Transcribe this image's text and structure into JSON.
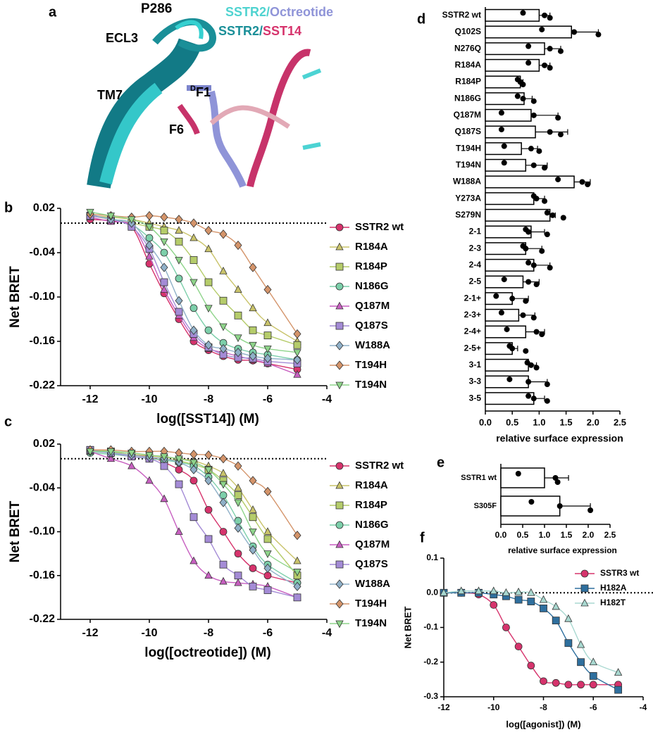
{
  "panel_a": {
    "letter": "a",
    "p286": "P286",
    "sstr2_a": "SSTR2/",
    "octreotide": "Octreotide",
    "sstr2_b": "SSTR2/",
    "sst14": "SST14",
    "ecl3": "ECL3",
    "d_prefix": "D",
    "f1": "F1",
    "tm7": "TM7",
    "f6": "F6"
  },
  "chart_data": [
    {
      "panel": "b",
      "type": "line",
      "y_label": "Net BRET",
      "x_label": "log([SST14]) (M)",
      "x": [
        -12,
        -11.3,
        -10.6,
        -10,
        -9.5,
        -9,
        -8.5,
        -8,
        -7.5,
        -7,
        -6.5,
        -6,
        -5
      ],
      "xlim": [
        -13,
        -4
      ],
      "xticks": [
        -12,
        -10,
        -8,
        -6,
        -4
      ],
      "ylim": [
        -0.22,
        0.02
      ],
      "yticks": [
        0.02,
        -0.04,
        {
          "value": -0.1,
          "label": "-0.10"
        },
        -0.16,
        -0.22
      ],
      "reference_line": 0,
      "series": [
        {
          "name": "SSTR2 wt",
          "color": "#d6336c",
          "marker": "circle",
          "values": [
            0.005,
            0.003,
            -0.005,
            -0.055,
            -0.095,
            -0.13,
            -0.16,
            -0.172,
            -0.18,
            -0.185,
            -0.186,
            -0.19,
            -0.198
          ]
        },
        {
          "name": "R184A",
          "color": "#c9c36a",
          "marker": "triangle",
          "values": [
            0.01,
            0.008,
            0.005,
            0.0,
            -0.005,
            -0.01,
            -0.02,
            -0.035,
            -0.065,
            -0.09,
            -0.115,
            -0.135,
            -0.16
          ]
        },
        {
          "name": "R184P",
          "color": "#b5cc6a",
          "marker": "square",
          "values": [
            0.01,
            0.005,
            0.0,
            -0.005,
            -0.01,
            -0.025,
            -0.05,
            -0.08,
            -0.105,
            -0.125,
            -0.145,
            -0.152,
            -0.165
          ]
        },
        {
          "name": "N186G",
          "color": "#7ccfaa",
          "marker": "circle",
          "values": [
            0.01,
            0.006,
            -0.002,
            -0.02,
            -0.04,
            -0.075,
            -0.115,
            -0.145,
            -0.162,
            -0.17,
            -0.175,
            -0.178,
            -0.185
          ]
        },
        {
          "name": "Q187M",
          "color": "#c75fc0",
          "marker": "triangle",
          "values": [
            0.008,
            0.002,
            -0.003,
            -0.045,
            -0.09,
            -0.125,
            -0.155,
            -0.17,
            -0.175,
            -0.18,
            -0.185,
            -0.19,
            -0.205
          ]
        },
        {
          "name": "Q187S",
          "color": "#a48bd6",
          "marker": "square",
          "values": [
            0.01,
            0.005,
            -0.005,
            -0.035,
            -0.08,
            -0.12,
            -0.15,
            -0.168,
            -0.178,
            -0.182,
            -0.183,
            -0.187,
            -0.19
          ]
        },
        {
          "name": "W188A",
          "color": "#8fb0c8",
          "marker": "diamond",
          "values": [
            0.012,
            0.005,
            0.0,
            -0.03,
            -0.06,
            -0.105,
            -0.145,
            -0.165,
            -0.17,
            -0.175,
            -0.18,
            -0.183,
            -0.185
          ]
        },
        {
          "name": "T194H",
          "color": "#d4946a",
          "marker": "diamond",
          "values": [
            0.012,
            0.01,
            0.008,
            0.01,
            0.008,
            0.005,
            0.0,
            -0.01,
            -0.015,
            -0.03,
            -0.06,
            -0.09,
            -0.15
          ]
        },
        {
          "name": "T194N",
          "color": "#8ed48a",
          "marker": "downtriangle",
          "values": [
            0.015,
            0.01,
            0.005,
            -0.005,
            -0.025,
            -0.05,
            -0.08,
            -0.115,
            -0.14,
            -0.155,
            -0.165,
            -0.17,
            -0.175
          ]
        }
      ]
    },
    {
      "panel": "c",
      "type": "line",
      "y_label": "Net BRET",
      "x_label": "log([octreotide]) (M)",
      "x": [
        -12,
        -11.3,
        -10.6,
        -10,
        -9.5,
        -9,
        -8.5,
        -8,
        -7.5,
        -7,
        -6.5,
        -6,
        -5
      ],
      "xlim": [
        -13,
        -4
      ],
      "xticks": [
        -12,
        -10,
        -8,
        -6,
        -4
      ],
      "ylim": [
        -0.22,
        0.02
      ],
      "yticks": [
        0.02,
        -0.04,
        {
          "value": -0.1,
          "label": "-0.10"
        },
        -0.16,
        -0.22
      ],
      "reference_line": 0,
      "series": [
        {
          "name": "SSTR2 wt",
          "color": "#d6336c",
          "marker": "circle",
          "values": [
            0.012,
            0.01,
            0.005,
            0.003,
            -0.005,
            -0.015,
            -0.03,
            -0.07,
            -0.1,
            -0.13,
            -0.15,
            -0.16,
            -0.17
          ]
        },
        {
          "name": "R184A",
          "color": "#c9c36a",
          "marker": "triangle",
          "values": [
            0.01,
            0.008,
            0.006,
            0.004,
            0.002,
            0.0,
            -0.003,
            -0.01,
            -0.02,
            -0.04,
            -0.07,
            -0.1,
            -0.14
          ]
        },
        {
          "name": "R184P",
          "color": "#b5cc6a",
          "marker": "square",
          "values": [
            0.012,
            0.01,
            0.005,
            0.002,
            0.0,
            -0.003,
            -0.008,
            -0.015,
            -0.03,
            -0.05,
            -0.08,
            -0.11,
            -0.16
          ]
        },
        {
          "name": "N186G",
          "color": "#7ccfaa",
          "marker": "circle",
          "values": [
            0.008,
            0.006,
            0.003,
            0.0,
            -0.002,
            -0.005,
            -0.01,
            -0.025,
            -0.05,
            -0.085,
            -0.12,
            -0.145,
            -0.17
          ]
        },
        {
          "name": "Q187M",
          "color": "#c75fc0",
          "marker": "triangle",
          "values": [
            0.01,
            0.0,
            -0.01,
            -0.03,
            -0.055,
            -0.1,
            -0.14,
            -0.16,
            -0.168,
            -0.17,
            -0.172,
            -0.175,
            -0.19
          ]
        },
        {
          "name": "Q187S",
          "color": "#a48bd6",
          "marker": "square",
          "values": [
            0.012,
            0.008,
            0.003,
            0.0,
            -0.01,
            -0.035,
            -0.08,
            -0.11,
            -0.145,
            -0.16,
            -0.175,
            -0.18,
            -0.19
          ]
        },
        {
          "name": "W188A",
          "color": "#8fb0c8",
          "marker": "diamond",
          "values": [
            0.01,
            0.008,
            0.005,
            0.002,
            0.0,
            -0.005,
            -0.015,
            -0.03,
            -0.06,
            -0.095,
            -0.125,
            -0.15,
            -0.175
          ]
        },
        {
          "name": "T194H",
          "color": "#d4946a",
          "marker": "diamond",
          "values": [
            0.012,
            0.012,
            0.01,
            0.01,
            0.01,
            0.008,
            0.006,
            0.005,
            0.0,
            -0.01,
            -0.03,
            -0.045,
            -0.105
          ]
        },
        {
          "name": "T194N",
          "color": "#8ed48a",
          "marker": "downtriangle",
          "values": [
            0.01,
            0.01,
            0.008,
            0.005,
            0.003,
            0.0,
            -0.005,
            -0.015,
            -0.035,
            -0.06,
            -0.1,
            -0.13,
            -0.155
          ]
        }
      ]
    },
    {
      "panel": "d",
      "type": "hbar",
      "x_label": "relative surface expression",
      "color": "#ffffff",
      "categories": [
        "SSTR2 wt",
        "Q102S",
        "N276Q",
        "R184A",
        "R184P",
        "N186G",
        "Q187M",
        "Q187S",
        "T194H",
        "T194N",
        "W188A",
        "Y273A",
        "S279N",
        "2-1",
        "2-3",
        "2-4",
        "2-5",
        "2-1+",
        "2-3+",
        "2-4+",
        "2-5+",
        "3-1",
        "3-3",
        "3-5"
      ],
      "values": [
        1.0,
        1.6,
        1.1,
        1.0,
        0.65,
        0.72,
        0.85,
        0.93,
        0.67,
        0.75,
        1.65,
        0.9,
        1.2,
        0.85,
        0.75,
        0.9,
        0.7,
        0.5,
        0.62,
        0.75,
        0.5,
        0.8,
        0.8,
        0.9
      ],
      "errors": [
        0.2,
        0.5,
        0.3,
        0.2,
        0.05,
        0.15,
        0.5,
        0.6,
        0.3,
        0.4,
        0.3,
        0.2,
        0.1,
        0.25,
        0.3,
        0.3,
        0.3,
        0.3,
        0.3,
        0.35,
        0.1,
        0.15,
        0.35,
        0.2
      ],
      "points": [
        [
          0.7,
          1.1,
          1.2
        ],
        [
          1.05,
          1.65,
          2.1
        ],
        [
          0.8,
          1.2,
          1.4
        ],
        [
          0.8,
          1.1,
          1.2
        ],
        [
          0.6,
          0.65,
          0.7
        ],
        [
          0.6,
          0.7,
          0.9
        ],
        [
          0.3,
          0.9,
          1.35
        ],
        [
          0.3,
          1.2,
          1.4
        ],
        [
          0.35,
          0.85,
          1.0
        ],
        [
          0.35,
          0.9,
          1.1
        ],
        [
          1.35,
          1.8,
          1.9
        ],
        [
          0.9,
          0.95,
          1.1
        ],
        [
          1.15,
          1.25,
          1.45
        ],
        [
          0.75,
          0.8,
          1.15
        ],
        [
          0.7,
          0.75,
          1.05
        ],
        [
          0.8,
          0.9,
          1.2
        ],
        [
          0.35,
          0.8,
          0.95
        ],
        [
          0.2,
          0.5,
          0.75
        ],
        [
          0.3,
          0.7,
          0.9
        ],
        [
          0.4,
          0.95,
          1.05
        ],
        [
          0.45,
          0.5,
          0.75
        ],
        [
          0.78,
          0.85,
          0.95
        ],
        [
          0.45,
          0.8,
          1.15
        ],
        [
          0.8,
          0.9,
          1.15
        ]
      ],
      "xlim": [
        0,
        2.5
      ],
      "xticks": [
        {
          "value": 0,
          "label": "0.0"
        },
        0.5,
        {
          "value": 1,
          "label": "1.0"
        },
        1.5,
        {
          "value": 2,
          "label": "2.0"
        },
        2.5
      ]
    },
    {
      "panel": "e",
      "type": "hbar",
      "x_label": "relative surface expression",
      "color": "#ffffff",
      "categories": [
        "SSTR1 wt",
        "S305F"
      ],
      "values": [
        1.0,
        1.35
      ],
      "errors": [
        0.55,
        0.7
      ],
      "points": [
        [
          0.4,
          1.25,
          1.3
        ],
        [
          0.7,
          1.35,
          2.05
        ]
      ],
      "xlim": [
        0,
        2.5
      ],
      "xticks": [
        {
          "value": 0,
          "label": "0.0"
        },
        0.5,
        {
          "value": 1,
          "label": "1.0"
        },
        1.5,
        {
          "value": 2,
          "label": "2.0"
        },
        2.5
      ]
    },
    {
      "panel": "f",
      "type": "line",
      "y_label": "Net BRET",
      "x_label": "log([agonist]) (M)",
      "x": [
        -12,
        -11.3,
        -10.6,
        -10,
        -9.5,
        -9,
        -8.5,
        -8,
        -7.5,
        -7,
        -6.5,
        -6,
        -5
      ],
      "xlim": [
        -12,
        -4
      ],
      "xticks": [
        -12,
        -10,
        -8,
        -6,
        -4
      ],
      "ylim": [
        -0.3,
        0.1
      ],
      "yticks": [
        0.1,
        {
          "value": 0,
          "label": "0.0"
        },
        -0.1,
        -0.2,
        -0.3
      ],
      "reference_line": 0,
      "series": [
        {
          "name": "SSTR3 wt",
          "color": "#d6336c",
          "marker": "circle",
          "values": [
            0.0,
            0.0,
            -0.005,
            -0.035,
            -0.1,
            -0.155,
            -0.21,
            -0.255,
            -0.26,
            -0.265,
            -0.265,
            -0.265,
            -0.265
          ]
        },
        {
          "name": "H182A",
          "color": "#2e6f9e",
          "marker": "square",
          "values": [
            0.0,
            0.0,
            0.0,
            -0.005,
            -0.01,
            -0.02,
            -0.025,
            -0.045,
            -0.08,
            -0.145,
            -0.2,
            -0.24,
            -0.28
          ]
        },
        {
          "name": "H182T",
          "color": "#a8d8d0",
          "marker": "triangle",
          "values": [
            0.0,
            0.005,
            0.005,
            0.005,
            0.0,
            0.002,
            0.0,
            -0.02,
            -0.04,
            -0.075,
            -0.15,
            -0.2,
            -0.23
          ]
        }
      ]
    }
  ]
}
